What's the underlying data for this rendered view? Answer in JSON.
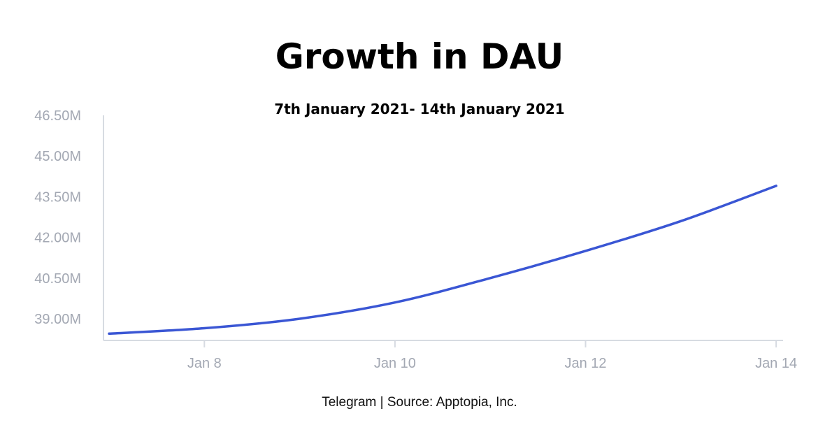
{
  "title": "Growth in DAU",
  "subtitle": "7th January 2021- 14th January 2021",
  "footer": "Telegram | Source: Apptopia, Inc.",
  "colors": {
    "line": "#3a56d4",
    "axis": "#d7dbe2",
    "tick_text": "#a3a8b3"
  },
  "chart_data": {
    "type": "line",
    "title": "Growth in DAU",
    "subtitle": "7th January 2021- 14th January 2021",
    "xlabel": "",
    "ylabel": "",
    "x_ticks": [
      "Jan 8",
      "Jan 10",
      "Jan 12",
      "Jan 14"
    ],
    "y_ticks": [
      "46.50M",
      "45.00M",
      "43.50M",
      "42.00M",
      "40.50M",
      "39.00M"
    ],
    "y_tick_values": [
      46.5,
      45.0,
      43.5,
      42.0,
      40.5,
      39.0
    ],
    "ylim": [
      38.2,
      46.5
    ],
    "xlim": [
      "2021-01-07",
      "2021-01-14"
    ],
    "grid": false,
    "series": [
      {
        "x": [
          "2021-01-07",
          "2021-01-08",
          "2021-01-09",
          "2021-01-10",
          "2021-01-11",
          "2021-01-12",
          "2021-01-13",
          "2021-01-14"
        ],
        "values": [
          38.45,
          38.65,
          39.0,
          39.6,
          40.5,
          41.5,
          42.6,
          43.9
        ]
      }
    ]
  }
}
